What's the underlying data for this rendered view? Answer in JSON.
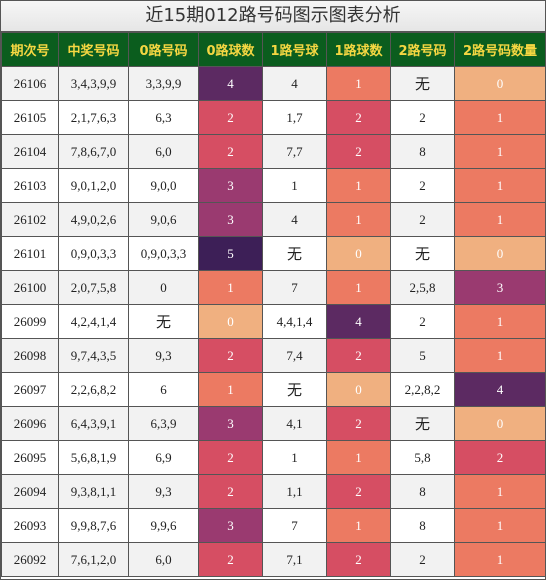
{
  "title": "近15期012路号码图示图表分析",
  "headers": [
    "期次号",
    "中奖号码",
    "0路号码",
    "0路球数",
    "1路号球",
    "1路球数",
    "2路号码",
    "2路号码数量"
  ],
  "colors": {
    "0": "#f0b080",
    "1": "#ec7a62",
    "2": "#d64e63",
    "3": "#9a3a70",
    "4": "#5c2a62",
    "5": "#3d1f57",
    "header_bg": "#0b5d1e",
    "header_text": "#f5d742"
  },
  "rows": [
    {
      "issue": "26106",
      "numbers": "3,4,3,9,9",
      "r0": "3,3,9,9",
      "c0": 4,
      "r1": "4",
      "c1": 1,
      "r2": "无",
      "c2": 0
    },
    {
      "issue": "26105",
      "numbers": "2,1,7,6,3",
      "r0": "6,3",
      "c0": 2,
      "r1": "1,7",
      "c1": 2,
      "r2": "2",
      "c2": 1
    },
    {
      "issue": "26104",
      "numbers": "7,8,6,7,0",
      "r0": "6,0",
      "c0": 2,
      "r1": "7,7",
      "c1": 2,
      "r2": "8",
      "c2": 1
    },
    {
      "issue": "26103",
      "numbers": "9,0,1,2,0",
      "r0": "9,0,0",
      "c0": 3,
      "r1": "1",
      "c1": 1,
      "r2": "2",
      "c2": 1
    },
    {
      "issue": "26102",
      "numbers": "4,9,0,2,6",
      "r0": "9,0,6",
      "c0": 3,
      "r1": "4",
      "c1": 1,
      "r2": "2",
      "c2": 1
    },
    {
      "issue": "26101",
      "numbers": "0,9,0,3,3",
      "r0": "0,9,0,3,3",
      "c0": 5,
      "r1": "无",
      "c1": 0,
      "r2": "无",
      "c2": 0
    },
    {
      "issue": "26100",
      "numbers": "2,0,7,5,8",
      "r0": "0",
      "c0": 1,
      "r1": "7",
      "c1": 1,
      "r2": "2,5,8",
      "c2": 3
    },
    {
      "issue": "26099",
      "numbers": "4,2,4,1,4",
      "r0": "无",
      "c0": 0,
      "r1": "4,4,1,4",
      "c1": 4,
      "r2": "2",
      "c2": 1
    },
    {
      "issue": "26098",
      "numbers": "9,7,4,3,5",
      "r0": "9,3",
      "c0": 2,
      "r1": "7,4",
      "c1": 2,
      "r2": "5",
      "c2": 1
    },
    {
      "issue": "26097",
      "numbers": "2,2,6,8,2",
      "r0": "6",
      "c0": 1,
      "r1": "无",
      "c1": 0,
      "r2": "2,2,8,2",
      "c2": 4
    },
    {
      "issue": "26096",
      "numbers": "6,4,3,9,1",
      "r0": "6,3,9",
      "c0": 3,
      "r1": "4,1",
      "c1": 2,
      "r2": "无",
      "c2": 0
    },
    {
      "issue": "26095",
      "numbers": "5,6,8,1,9",
      "r0": "6,9",
      "c0": 2,
      "r1": "1",
      "c1": 1,
      "r2": "5,8",
      "c2": 2
    },
    {
      "issue": "26094",
      "numbers": "9,3,8,1,1",
      "r0": "9,3",
      "c0": 2,
      "r1": "1,1",
      "c1": 2,
      "r2": "8",
      "c2": 1
    },
    {
      "issue": "26093",
      "numbers": "9,9,8,7,6",
      "r0": "9,9,6",
      "c0": 3,
      "r1": "7",
      "c1": 1,
      "r2": "8",
      "c2": 1
    },
    {
      "issue": "26092",
      "numbers": "7,6,1,2,0",
      "r0": "6,0",
      "c0": 2,
      "r1": "7,1",
      "c1": 2,
      "r2": "2",
      "c2": 1
    }
  ]
}
